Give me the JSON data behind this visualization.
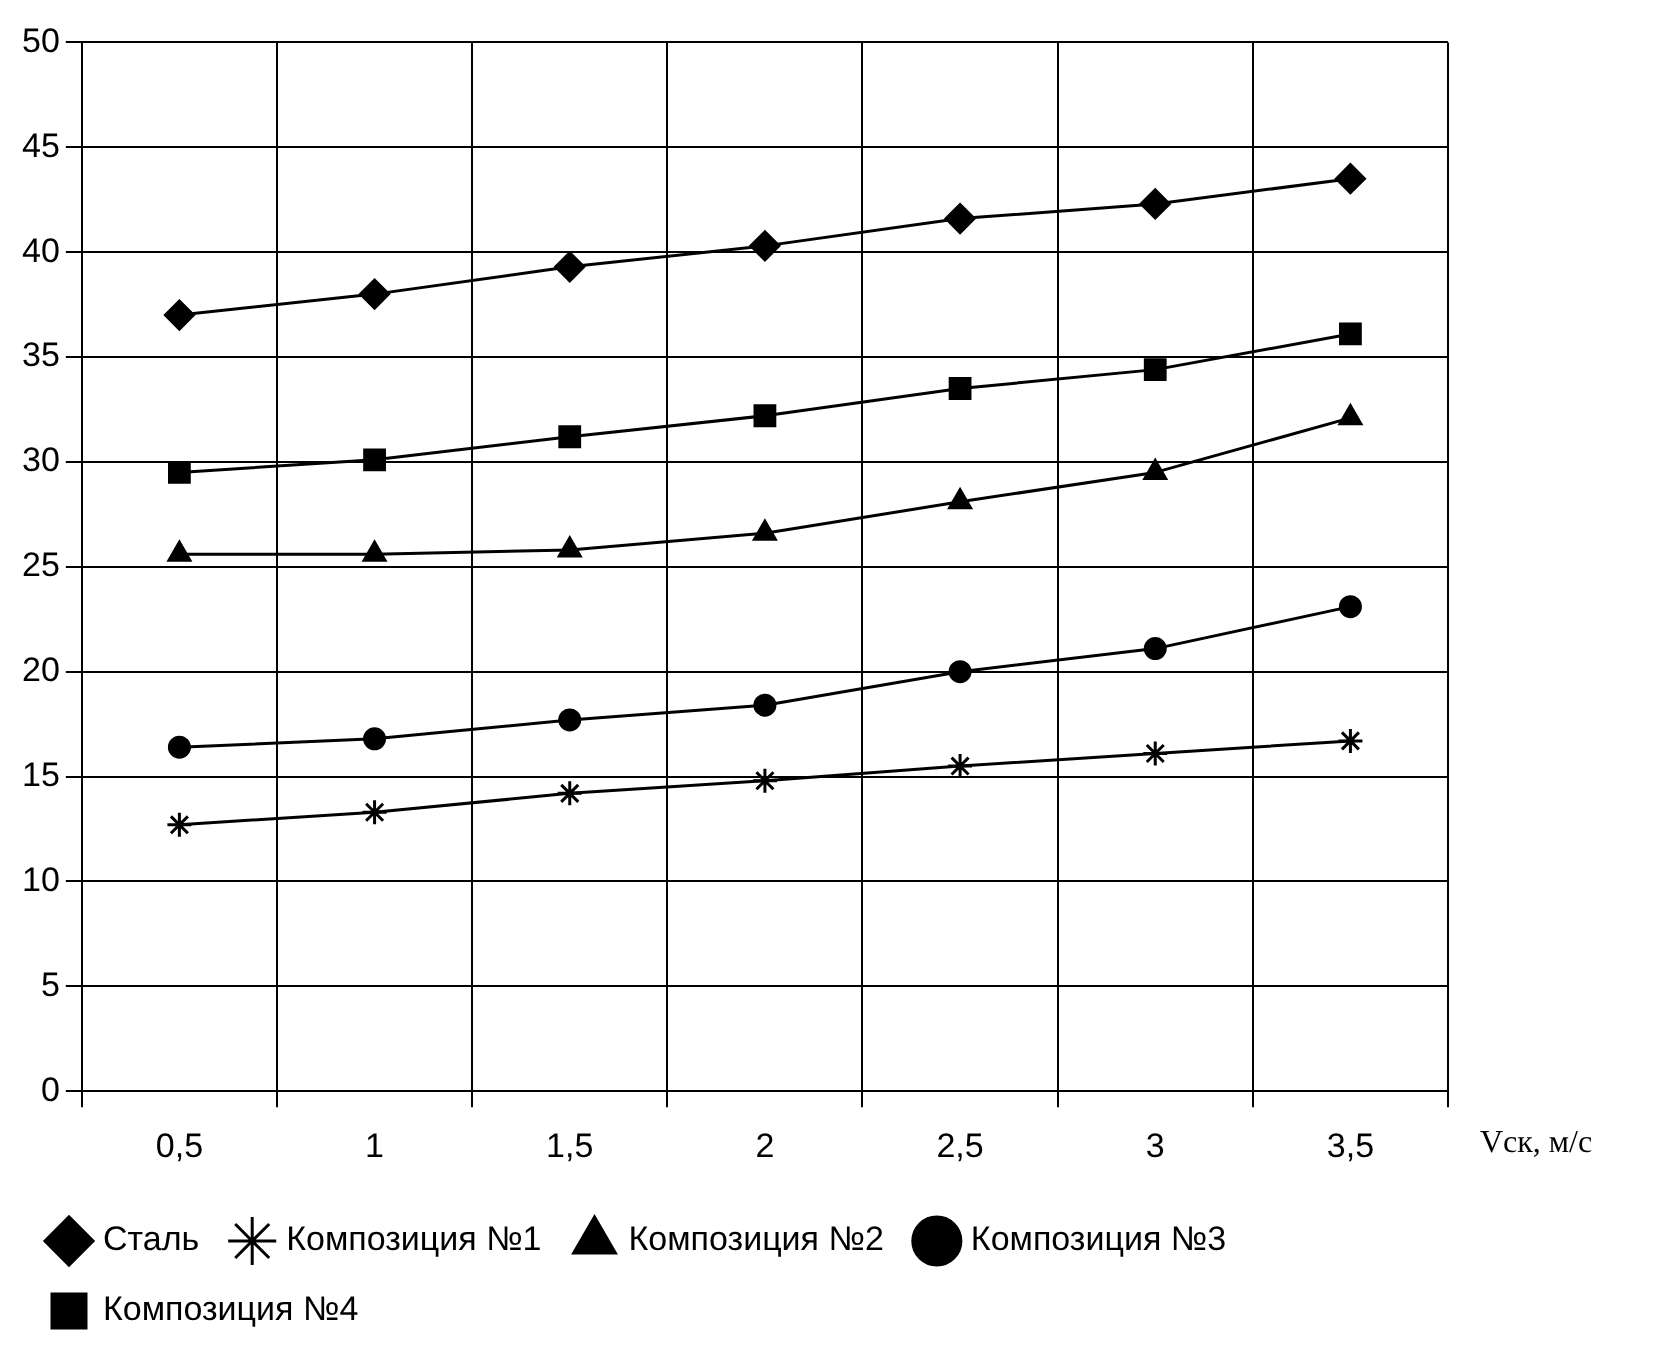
{
  "chart_data": {
    "type": "line",
    "xlabel": "Vск, м/с",
    "categories": [
      "0,5",
      "1",
      "1,5",
      "2",
      "2,5",
      "3",
      "3,5"
    ],
    "ylim": [
      0,
      50
    ],
    "yticks": [
      0,
      5,
      10,
      15,
      20,
      25,
      30,
      35,
      40,
      45,
      50
    ],
    "grid": true,
    "legend": "bottom",
    "series": [
      {
        "name": "Сталь",
        "color": "#000000",
        "marker": "diamond",
        "values": [
          37.0,
          38.0,
          39.3,
          40.3,
          41.6,
          42.3,
          43.5
        ]
      },
      {
        "name": "Композиция №1",
        "color": "#000000",
        "marker": "cross",
        "values": [
          12.7,
          13.3,
          14.2,
          14.8,
          15.5,
          16.1,
          16.7
        ]
      },
      {
        "name": "Композиция №2",
        "color": "#000000",
        "marker": "triangle",
        "values": [
          25.6,
          25.6,
          25.8,
          26.6,
          28.1,
          29.5,
          32.1
        ]
      },
      {
        "name": "Композиция №3",
        "color": "#000000",
        "marker": "circle",
        "values": [
          16.4,
          16.8,
          17.7,
          18.4,
          20.0,
          21.1,
          23.1
        ]
      },
      {
        "name": "Композиция №4",
        "color": "#000000",
        "marker": "square",
        "values": [
          29.5,
          30.1,
          31.2,
          32.2,
          33.5,
          34.4,
          36.1
        ]
      }
    ]
  }
}
